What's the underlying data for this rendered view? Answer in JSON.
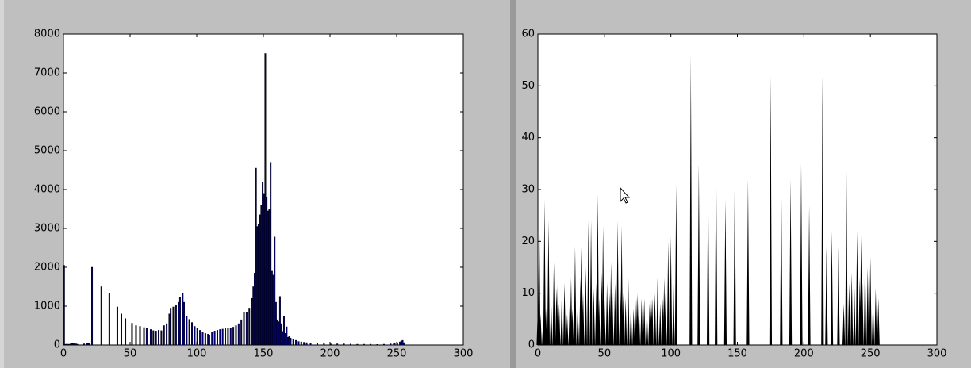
{
  "chart_data": [
    {
      "type": "bar",
      "color": "#00007f",
      "edgecolor": "#000000",
      "x": [
        0,
        1,
        2,
        3,
        4,
        5,
        6,
        7,
        8,
        9,
        10,
        15,
        17,
        18,
        19,
        21,
        28,
        34,
        40,
        43,
        46,
        51,
        54,
        57,
        60,
        62,
        65,
        67,
        69,
        71,
        73,
        75,
        77,
        79,
        80,
        82,
        84,
        86,
        87,
        89,
        90,
        92,
        94,
        96,
        98,
        100,
        102,
        104,
        106,
        108,
        109,
        111,
        113,
        115,
        117,
        119,
        121,
        123,
        125,
        127,
        129,
        131,
        133,
        135,
        137,
        139,
        141,
        142,
        143,
        144,
        145,
        146,
        147,
        148,
        149,
        150,
        151,
        152,
        153,
        154,
        155,
        156,
        157,
        158,
        159,
        160,
        161,
        162,
        163,
        164,
        165,
        166,
        167,
        168,
        169,
        170,
        172,
        174,
        176,
        178,
        180,
        182,
        185,
        190,
        195,
        200,
        205,
        210,
        215,
        220,
        225,
        230,
        235,
        240,
        245,
        248,
        250,
        252,
        253,
        254,
        255
      ],
      "values": [
        2050,
        20,
        20,
        20,
        20,
        30,
        40,
        40,
        30,
        30,
        20,
        30,
        40,
        50,
        40,
        2000,
        1500,
        1330,
        980,
        800,
        680,
        560,
        500,
        480,
        450,
        440,
        400,
        370,
        360,
        380,
        370,
        500,
        550,
        800,
        950,
        980,
        1030,
        1100,
        1220,
        1340,
        1100,
        750,
        660,
        580,
        480,
        430,
        380,
        320,
        300,
        280,
        260,
        340,
        360,
        380,
        400,
        410,
        420,
        440,
        430,
        460,
        500,
        550,
        650,
        850,
        850,
        950,
        1200,
        1500,
        1850,
        4550,
        3050,
        3100,
        3350,
        3600,
        4200,
        3900,
        7500,
        3800,
        3450,
        3500,
        4700,
        1900,
        1800,
        2780,
        1100,
        650,
        600,
        1250,
        550,
        350,
        750,
        300,
        470,
        200,
        220,
        180,
        150,
        120,
        90,
        80,
        70,
        60,
        50,
        40,
        40,
        30,
        30,
        30,
        25,
        20,
        20,
        20,
        15,
        20,
        30,
        40,
        60,
        80,
        100,
        120,
        60
      ],
      "xlim": [
        0,
        300
      ],
      "xticks": [
        0,
        50,
        100,
        150,
        200,
        250,
        300
      ],
      "ylim": [
        0,
        8000
      ],
      "yticks": [
        0,
        1000,
        2000,
        3000,
        4000,
        5000,
        6000,
        7000,
        8000
      ]
    },
    {
      "type": "spike",
      "color": "#000000",
      "x": [
        0,
        1,
        2,
        4,
        5,
        6,
        8,
        10,
        12,
        14,
        15,
        16,
        18,
        20,
        22,
        24,
        25,
        26,
        28,
        30,
        32,
        33,
        34,
        36,
        38,
        40,
        42,
        44,
        45,
        46,
        48,
        49,
        50,
        52,
        54,
        55,
        56,
        58,
        60,
        62,
        63,
        64,
        66,
        68,
        70,
        72,
        74,
        75,
        76,
        78,
        80,
        82,
        84,
        85,
        86,
        88,
        90,
        92,
        94,
        95,
        96,
        98,
        100,
        102,
        104,
        115,
        121,
        128,
        134,
        141,
        148,
        158,
        175,
        183,
        190,
        198,
        204,
        214,
        217,
        221,
        226,
        230,
        232,
        234,
        236,
        238,
        240,
        242,
        243,
        244,
        246,
        248,
        250,
        252,
        254,
        256
      ],
      "values": [
        7,
        27,
        6,
        5,
        28,
        7,
        24,
        9,
        16,
        11,
        13,
        8,
        10,
        12,
        6,
        9,
        13,
        7,
        19,
        8,
        13,
        19,
        10,
        15,
        24,
        24,
        11,
        12,
        29,
        9,
        14,
        23,
        10,
        12,
        10,
        16,
        11,
        12,
        24,
        11,
        23,
        10,
        9,
        13,
        8,
        7,
        9,
        10,
        8,
        9,
        9,
        7,
        8,
        13,
        9,
        10,
        13,
        8,
        9,
        13,
        10,
        20,
        21,
        12,
        31,
        56,
        35,
        33,
        38,
        28,
        33,
        32,
        52,
        32,
        32,
        35,
        27,
        52,
        19,
        22,
        19,
        8,
        34,
        12,
        14,
        11,
        22,
        13,
        21,
        12,
        18,
        15,
        17,
        9,
        11,
        9
      ],
      "xlim": [
        0,
        300
      ],
      "xticks": [
        0,
        50,
        100,
        150,
        200,
        250,
        300
      ],
      "ylim": [
        0,
        60
      ],
      "yticks": [
        0,
        10,
        20,
        30,
        40,
        50,
        60
      ]
    }
  ]
}
